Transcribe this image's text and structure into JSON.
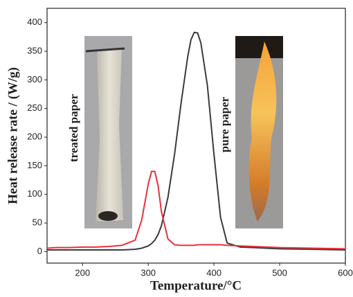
{
  "chart_data": {
    "type": "line",
    "xlabel": "Temperature/°C",
    "ylabel": "Heat release rate / (W/g)",
    "annotations": [
      "treated paper",
      "pure paper"
    ],
    "x": [
      146,
      160,
      180,
      200,
      220,
      240,
      260,
      280,
      290,
      300,
      305,
      310,
      315,
      320,
      330,
      340,
      350,
      360,
      365,
      370,
      375,
      380,
      390,
      400,
      410,
      420,
      440,
      460,
      500,
      550,
      600
    ],
    "series": [
      {
        "color": "#3a3a3a",
        "values": [
          3,
          3,
          3,
          3,
          3,
          3,
          3,
          4,
          6,
          10,
          14,
          20,
          30,
          45,
          95,
          170,
          260,
          340,
          370,
          383,
          382,
          365,
          290,
          170,
          60,
          15,
          8,
          7,
          5,
          4,
          3
        ]
      },
      {
        "color": "#e8303a",
        "values": [
          6,
          7,
          7,
          8,
          8,
          9,
          11,
          20,
          55,
          118,
          140,
          140,
          115,
          70,
          22,
          12,
          11,
          11,
          11,
          11,
          12,
          12,
          12,
          12,
          12,
          11,
          10,
          9,
          7,
          6,
          5
        ]
      }
    ],
    "xlim": [
      146,
      600
    ],
    "xticks": [
      200,
      300,
      400,
      500,
      600
    ],
    "ylim": [
      -20,
      425
    ],
    "yticks": [
      0,
      50,
      100,
      150,
      200,
      250,
      300,
      350,
      400
    ],
    "grid": false
  }
}
